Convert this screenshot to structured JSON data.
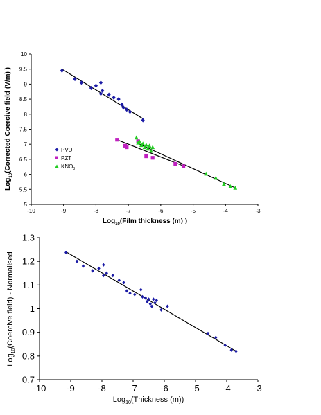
{
  "chart_data": [
    {
      "type": "scatter",
      "title": "",
      "xlabel": "Log10(Film thickness (m) )",
      "ylabel": "Log10(Corrected Coercive field (V/m) )",
      "xlim": [
        -10,
        -3
      ],
      "ylim": [
        5,
        10
      ],
      "x_ticks": [
        "-10",
        "-9",
        "-8",
        "-7",
        "-6",
        "-5",
        "-4",
        "-3"
      ],
      "y_ticks": [
        "5",
        "5.5",
        "6",
        "6.5",
        "7",
        "7.5",
        "8",
        "8.5",
        "9",
        "9.5",
        "10"
      ],
      "grid": false,
      "legend_position": "lower-left",
      "series": [
        {
          "name": "PVDF",
          "color": "#1a1aa6",
          "marker": "diamond",
          "points": [
            [
              -9.05,
              9.45
            ],
            [
              -8.65,
              9.17
            ],
            [
              -8.45,
              9.05
            ],
            [
              -8.15,
              8.87
            ],
            [
              -8.0,
              8.95
            ],
            [
              -7.85,
              9.05
            ],
            [
              -7.85,
              8.68
            ],
            [
              -7.8,
              8.78
            ],
            [
              -7.6,
              8.65
            ],
            [
              -7.45,
              8.55
            ],
            [
              -7.3,
              8.5
            ],
            [
              -7.2,
              8.32
            ],
            [
              -7.15,
              8.22
            ],
            [
              -7.05,
              8.15
            ],
            [
              -6.95,
              8.08
            ],
            [
              -6.55,
              7.8
            ]
          ],
          "fit": [
            [
              -9.05,
              9.5
            ],
            [
              -6.55,
              7.85
            ]
          ]
        },
        {
          "name": "PZT",
          "color": "#c020c0",
          "marker": "square",
          "points": [
            [
              -7.35,
              7.15
            ],
            [
              -7.1,
              6.95
            ],
            [
              -7.05,
              6.9
            ],
            [
              -6.7,
              7.1
            ],
            [
              -6.45,
              6.6
            ],
            [
              -6.25,
              6.55
            ],
            [
              -5.55,
              6.35
            ],
            [
              -5.3,
              6.27
            ]
          ],
          "fit": [
            [
              -7.35,
              7.15
            ],
            [
              -5.3,
              6.28
            ]
          ]
        },
        {
          "name": "KNO3",
          "color": "#22cc22",
          "marker": "triangle",
          "points": [
            [
              -6.75,
              7.22
            ],
            [
              -6.7,
              7.05
            ],
            [
              -6.65,
              7.08
            ],
            [
              -6.6,
              6.97
            ],
            [
              -6.55,
              7.02
            ],
            [
              -6.5,
              6.9
            ],
            [
              -6.45,
              6.98
            ],
            [
              -6.4,
              6.85
            ],
            [
              -6.35,
              6.95
            ],
            [
              -6.3,
              6.78
            ],
            [
              -6.25,
              6.9
            ],
            [
              -4.6,
              6.02
            ],
            [
              -4.3,
              5.88
            ],
            [
              -4.05,
              5.68
            ],
            [
              -3.85,
              5.6
            ],
            [
              -3.7,
              5.55
            ]
          ],
          "fit": [
            [
              -6.75,
              7.05
            ],
            [
              -3.7,
              5.55
            ]
          ]
        }
      ]
    },
    {
      "type": "scatter",
      "title": "",
      "xlabel": "Log10(Thickness (m))",
      "ylabel": "Log10(Coercive field) - Normalised",
      "xlim": [
        -10,
        -3
      ],
      "ylim": [
        0.7,
        1.3
      ],
      "x_ticks": [
        "-10",
        "-9",
        "-8",
        "-7",
        "-6",
        "-5",
        "-4",
        "-3"
      ],
      "y_ticks": [
        "0.7",
        "0.8",
        "0.9",
        "1",
        "1.1",
        "1.2",
        "1.3"
      ],
      "grid": false,
      "series": [
        {
          "color": "#1a1aa6",
          "marker": "diamond",
          "points": [
            [
              -9.15,
              1.237
            ],
            [
              -8.8,
              1.2
            ],
            [
              -8.6,
              1.18
            ],
            [
              -8.3,
              1.16
            ],
            [
              -8.1,
              1.17
            ],
            [
              -7.95,
              1.185
            ],
            [
              -7.95,
              1.14
            ],
            [
              -7.85,
              1.15
            ],
            [
              -7.65,
              1.14
            ],
            [
              -7.45,
              1.12
            ],
            [
              -7.3,
              1.11
            ],
            [
              -7.2,
              1.075
            ],
            [
              -7.1,
              1.065
            ],
            [
              -6.95,
              1.06
            ],
            [
              -6.75,
              1.08
            ],
            [
              -6.7,
              1.05
            ],
            [
              -6.6,
              1.045
            ],
            [
              -6.55,
              1.03
            ],
            [
              -6.5,
              1.04
            ],
            [
              -6.45,
              1.02
            ],
            [
              -6.4,
              1.01
            ],
            [
              -6.35,
              1.04
            ],
            [
              -6.3,
              1.025
            ],
            [
              -6.25,
              1.035
            ],
            [
              -6.1,
              0.995
            ],
            [
              -5.9,
              1.01
            ],
            [
              -4.6,
              0.895
            ],
            [
              -4.35,
              0.878
            ],
            [
              -4.05,
              0.845
            ],
            [
              -3.85,
              0.825
            ],
            [
              -3.7,
              0.82
            ]
          ],
          "fit": [
            [
              -9.15,
              1.24
            ],
            [
              -3.7,
              0.82
            ]
          ]
        }
      ]
    }
  ],
  "labels": {
    "top_ylabel_main": "Log",
    "top_ylabel_sub": "10",
    "top_ylabel_rest": "(Corrected Coercive field (V/m) )",
    "top_xlabel_main": "Log",
    "top_xlabel_sub": "10",
    "top_xlabel_rest": "(Film thickness (m) )",
    "bottom_ylabel_main": "Log",
    "bottom_ylabel_sub": "10",
    "bottom_ylabel_rest": "(Coercive field) - Normalised",
    "bottom_xlabel_main": "Log",
    "bottom_xlabel_sub": "10",
    "bottom_xlabel_rest": "(Thickness (m))",
    "legend_pvdf": "PVDF",
    "legend_pzt": "PZT",
    "legend_kno3_main": "KNO",
    "legend_kno3_sub": "3"
  }
}
